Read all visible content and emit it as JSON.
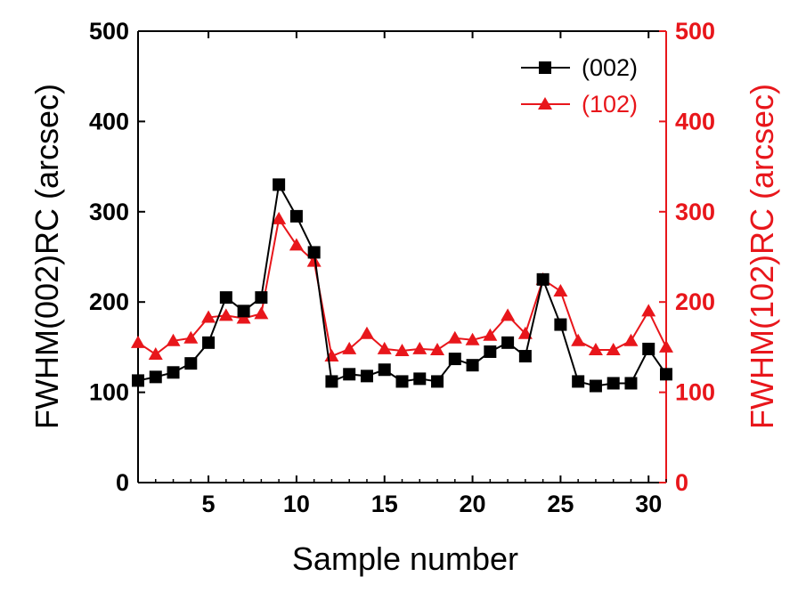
{
  "chart_data": {
    "type": "line",
    "xlabel": "Sample number",
    "ylabel_left": "FWHM(002)RC  (arcsec)",
    "ylabel_right": "FWHM(102)RC  (arcsec)",
    "xlim": [
      1,
      31
    ],
    "ylim": [
      0,
      500
    ],
    "x_ticks": [
      5,
      10,
      15,
      20,
      25,
      30
    ],
    "y_ticks_left": [
      0,
      100,
      200,
      300,
      400,
      500
    ],
    "y_ticks_right": [
      0,
      100,
      200,
      300,
      400,
      500
    ],
    "grid": false,
    "legend_position": "top-right",
    "x": [
      1,
      2,
      3,
      4,
      5,
      6,
      7,
      8,
      9,
      10,
      11,
      12,
      13,
      14,
      15,
      16,
      17,
      18,
      19,
      20,
      21,
      22,
      23,
      24,
      25,
      26,
      27,
      28,
      29,
      30,
      31
    ],
    "series": [
      {
        "name": "(002)",
        "axis": "left",
        "color": "#000000",
        "marker": "square",
        "values": [
          113,
          117,
          122,
          132,
          155,
          205,
          190,
          205,
          330,
          295,
          255,
          112,
          120,
          118,
          125,
          112,
          115,
          112,
          137,
          130,
          145,
          155,
          140,
          225,
          175,
          112,
          107,
          110,
          110,
          148,
          120
        ]
      },
      {
        "name": "(102)",
        "axis": "right",
        "color": "#e8161b",
        "marker": "triangle",
        "values": [
          155,
          142,
          157,
          160,
          183,
          185,
          182,
          187,
          292,
          263,
          245,
          140,
          148,
          165,
          148,
          146,
          148,
          147,
          160,
          158,
          163,
          185,
          165,
          225,
          212,
          157,
          147,
          147,
          157,
          190,
          150
        ]
      }
    ]
  },
  "colors": {
    "left_axis": "#000000",
    "right_axis": "#e8161b"
  }
}
